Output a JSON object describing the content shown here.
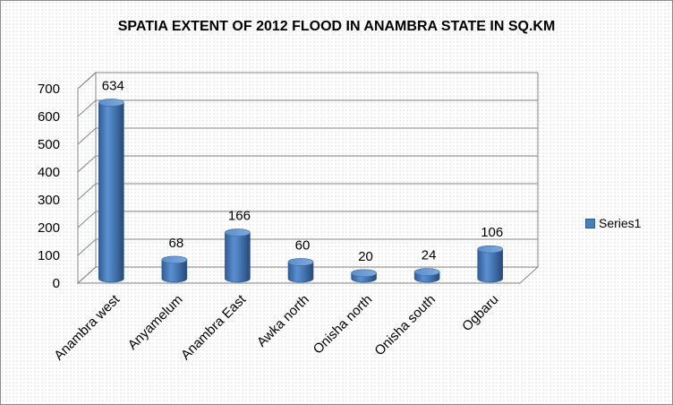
{
  "chart_data": {
    "type": "bar",
    "title": "SPATIA EXTENT OF 2012 FLOOD IN ANAMBRA STATE IN SQ.KM",
    "categories": [
      "Anambra west",
      "Anyamelum",
      "Anambra East",
      "Awka north",
      "Onisha north",
      "Onisha south",
      "Ogbaru"
    ],
    "series": [
      {
        "name": "Series1",
        "values": [
          634,
          68,
          166,
          60,
          20,
          24,
          106
        ],
        "color": "#4a7ebb"
      }
    ],
    "data_labels": [
      "634",
      "68",
      "166",
      "60",
      "20",
      "24",
      "106"
    ],
    "y_ticks": [
      "0",
      "100",
      "200",
      "300",
      "400",
      "500",
      "600",
      "700"
    ],
    "ylim": [
      0,
      700
    ],
    "xlabel": "",
    "ylabel": "",
    "grid": true,
    "legend": "right"
  }
}
